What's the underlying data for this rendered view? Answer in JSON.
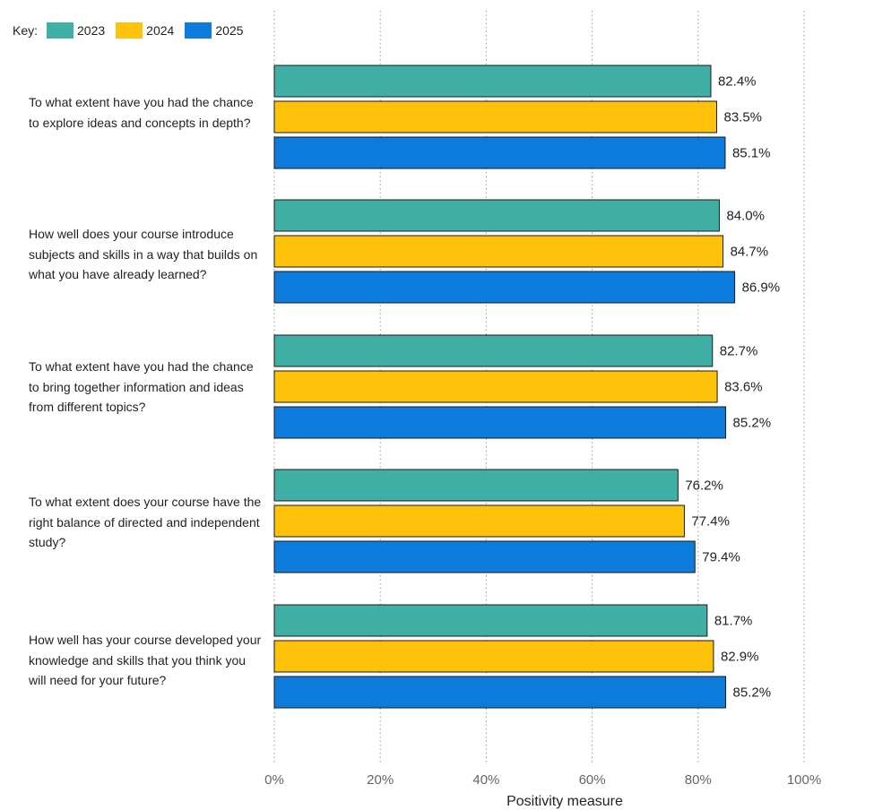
{
  "legend": {
    "label": "Key:",
    "items": [
      {
        "name": "2023",
        "color": "#40B0A6"
      },
      {
        "name": "2024",
        "color": "#FFC20A"
      },
      {
        "name": "2025",
        "color": "#0C7BDC"
      }
    ]
  },
  "chart_data": {
    "type": "bar",
    "orientation": "horizontal",
    "categories": [
      "To what extent have you had the chance to explore ideas and concepts in depth?",
      "How well does your course introduce subjects and skills in a way that builds on what you have already learned?",
      "To what extent have you had the chance to bring together information and ideas from different topics?",
      "To what extent does your course have the right balance of directed and independent study?",
      "How well has your course developed your knowledge and skills that you think you will need for your future?"
    ],
    "series": [
      {
        "name": "2023",
        "color": "#40B0A6",
        "values": [
          82.4,
          84.0,
          82.7,
          76.2,
          81.7
        ],
        "labels": [
          "82.4%",
          "84.0%",
          "82.7%",
          "76.2%",
          "81.7%"
        ]
      },
      {
        "name": "2024",
        "color": "#FFC20A",
        "values": [
          83.5,
          84.7,
          83.6,
          77.4,
          82.9
        ],
        "labels": [
          "83.5%",
          "84.7%",
          "83.6%",
          "77.4%",
          "82.9%"
        ]
      },
      {
        "name": "2025",
        "color": "#0C7BDC",
        "values": [
          85.1,
          86.9,
          85.2,
          79.4,
          85.2
        ],
        "labels": [
          "85.1%",
          "86.9%",
          "85.2%",
          "79.4%",
          "85.2%"
        ]
      }
    ],
    "xlabel": "Positivity measure",
    "ylabel": "",
    "xlim": [
      0,
      100
    ],
    "xticks": [
      {
        "value": 0,
        "label": "0%"
      },
      {
        "value": 20,
        "label": "20%"
      },
      {
        "value": 40,
        "label": "40%"
      },
      {
        "value": 60,
        "label": "60%"
      },
      {
        "value": 80,
        "label": "80%"
      },
      {
        "value": 100,
        "label": "100%"
      }
    ],
    "grid": "vertical dotted",
    "legend_position": "top-left"
  }
}
